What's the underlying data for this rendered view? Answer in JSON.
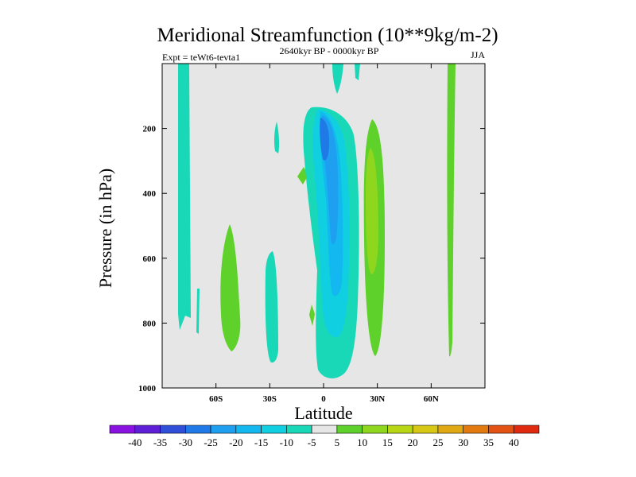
{
  "chart_data": {
    "type": "contour",
    "title": "Meridional Streamfunction (10**9kg/m-2)",
    "left_label": "Expt = teWt6-tevta1",
    "center_label": "2640kyr BP - 0000kyr BP",
    "right_label": "JJA",
    "xlabel": "Latitude",
    "ylabel": "Pressure (in hPa)",
    "xlim": [
      -90,
      90
    ],
    "ylim": [
      1000,
      0
    ],
    "x_ticks": [
      {
        "value": -60,
        "label": "60S"
      },
      {
        "value": -30,
        "label": "30S"
      },
      {
        "value": 0,
        "label": "0"
      },
      {
        "value": 30,
        "label": "30N"
      },
      {
        "value": 60,
        "label": "60N"
      }
    ],
    "y_ticks": [
      {
        "value": 200,
        "label": "200"
      },
      {
        "value": 400,
        "label": "400"
      },
      {
        "value": 600,
        "label": "600"
      },
      {
        "value": 800,
        "label": "800"
      },
      {
        "value": 1000,
        "label": "1000"
      }
    ],
    "background_color": "#e6e6e6",
    "colorbar": {
      "levels": [
        "-40",
        "-35",
        "-30",
        "-25",
        "-20",
        "-15",
        "-10",
        "-5",
        "5",
        "10",
        "15",
        "20",
        "25",
        "30",
        "35",
        "40"
      ],
      "colors": [
        "#8a12e0",
        "#5e1fd6",
        "#2f4fd8",
        "#1f7ae8",
        "#1f9fef",
        "#14b8f0",
        "#10cfe0",
        "#19d8b8",
        "#e6e6e6",
        "#5ed12a",
        "#8fd61e",
        "#b8d614",
        "#d6c814",
        "#e0a812",
        "#e27a10",
        "#e35212",
        "#e02a10"
      ]
    },
    "regions": [
      {
        "name": "NH midlatitude positive cell",
        "value_range": [
          10,
          15
        ],
        "lat": [
          24,
          34
        ],
        "pressure": [
          170,
          900
        ],
        "core_value": 15,
        "core_pressure": [
          270,
          670
        ]
      },
      {
        "name": "Tropical negative cell",
        "value_range": [
          -25,
          -5
        ],
        "lat": [
          -12,
          20
        ],
        "pressure": [
          140,
          960
        ],
        "core_value": -25,
        "core_pressure": [
          190,
          300
        ]
      },
      {
        "name": "SH midlatitude positive cell",
        "value_range": [
          5,
          10
        ],
        "lat": [
          -57,
          -45
        ],
        "pressure": [
          490,
          890
        ]
      },
      {
        "name": "High-latitude negative band (SH)",
        "value_range": [
          -10,
          -5
        ],
        "lat": [
          -80,
          -74
        ],
        "pressure": [
          0,
          820
        ]
      },
      {
        "name": "High-latitude positive band (NH)",
        "value_range": [
          5,
          10
        ],
        "lat": [
          69,
          73
        ],
        "pressure": [
          0,
          900
        ]
      }
    ]
  }
}
